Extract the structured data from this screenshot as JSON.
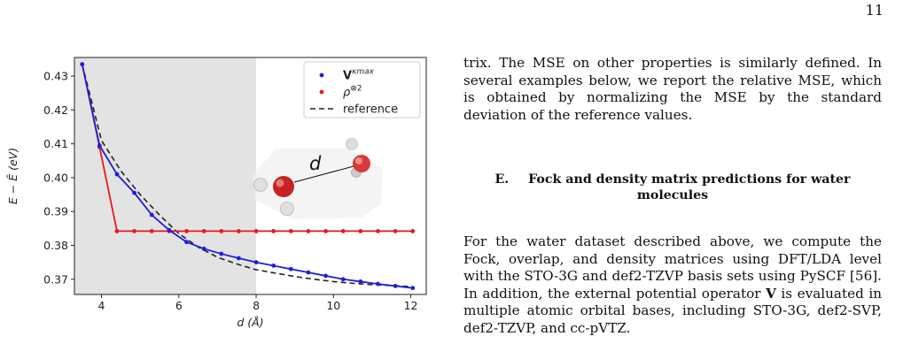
{
  "page": {
    "number": "11"
  },
  "text": {
    "para1": "trix. The MSE on other properties is similarly defined. In several examples below, we report the relative MSE, which is obtained by normalizing the MSE by the standard deviation of the reference values.",
    "section_label": "E.",
    "section_title": "Fock and density matrix predictions for water molecules",
    "para2_a": "For the water dataset described above, we compute the Fock, overlap, and density matrices using DFT/LDA level with the STO-3G and def2-TZVP basis sets using PySCF [56]. In addition, the external potential operator ",
    "para2_op": "V",
    "para2_b": " is evaluated in multiple atomic orbital bases, including STO-3G, def2-SVP, def2-TZVP, and cc-pVTZ."
  },
  "chart_data": {
    "type": "line",
    "xlabel": "d (Å)",
    "ylabel": "E − Ē (eV)",
    "xlim": [
      3.3,
      12.4
    ],
    "ylim": [
      0.3655,
      0.4355
    ],
    "xticks": [
      4,
      6,
      8,
      10,
      12
    ],
    "yticks": [
      0.37,
      0.38,
      0.39,
      0.4,
      0.41,
      0.42,
      0.43
    ],
    "xtick_labels": [
      "4",
      "6",
      "8",
      "10",
      "12"
    ],
    "ytick_labels": [
      "0.37",
      "0.38",
      "0.39",
      "0.40",
      "0.41",
      "0.42",
      "0.43"
    ],
    "shaded_region": [
      3.3,
      8.0
    ],
    "legend": {
      "position": "top-right",
      "entries": [
        "V^κmax",
        "ρ^⊗2",
        "reference"
      ]
    },
    "annotation": "d",
    "colors": {
      "series_v": "#1f1fd6",
      "series_rho": "#e41a1c",
      "reference": "#222222",
      "shade": "#e3e3e3"
    },
    "series": [
      {
        "name": "V^κmax",
        "x": [
          3.5,
          3.95,
          4.4,
          4.85,
          5.3,
          5.75,
          6.2,
          6.65,
          7.1,
          7.55,
          8.0,
          8.45,
          8.9,
          9.35,
          9.8,
          10.25,
          10.7,
          11.15,
          11.6,
          12.05
        ],
        "y": [
          0.4335,
          0.4095,
          0.401,
          0.3955,
          0.389,
          0.3845,
          0.381,
          0.379,
          0.3775,
          0.3762,
          0.375,
          0.374,
          0.373,
          0.372,
          0.371,
          0.37,
          0.3693,
          0.3686,
          0.368,
          0.3674
        ]
      },
      {
        "name": "ρ^⊗2",
        "x": [
          3.5,
          3.95,
          4.4,
          4.85,
          5.3,
          5.75,
          6.2,
          6.65,
          7.1,
          7.55,
          8.0,
          8.45,
          8.9,
          9.35,
          9.8,
          10.25,
          10.7,
          11.15,
          11.6,
          12.05
        ],
        "y": [
          0.4335,
          0.409,
          0.3842,
          0.3842,
          0.3842,
          0.3842,
          0.3842,
          0.3842,
          0.3842,
          0.3842,
          0.3842,
          0.3842,
          0.3842,
          0.3842,
          0.3842,
          0.3842,
          0.3842,
          0.3842,
          0.3842,
          0.3842
        ]
      },
      {
        "name": "reference",
        "x": [
          3.5,
          4.0,
          4.5,
          5.0,
          5.5,
          6.0,
          6.5,
          7.0,
          7.5,
          8.0,
          8.5,
          9.0,
          9.5,
          10.0,
          10.5,
          11.0,
          11.5,
          12.05
        ],
        "y": [
          0.4335,
          0.411,
          0.402,
          0.395,
          0.389,
          0.3835,
          0.3795,
          0.3765,
          0.3745,
          0.3728,
          0.3718,
          0.3708,
          0.37,
          0.3693,
          0.3688,
          0.3684,
          0.3681,
          0.3678
        ]
      }
    ]
  }
}
